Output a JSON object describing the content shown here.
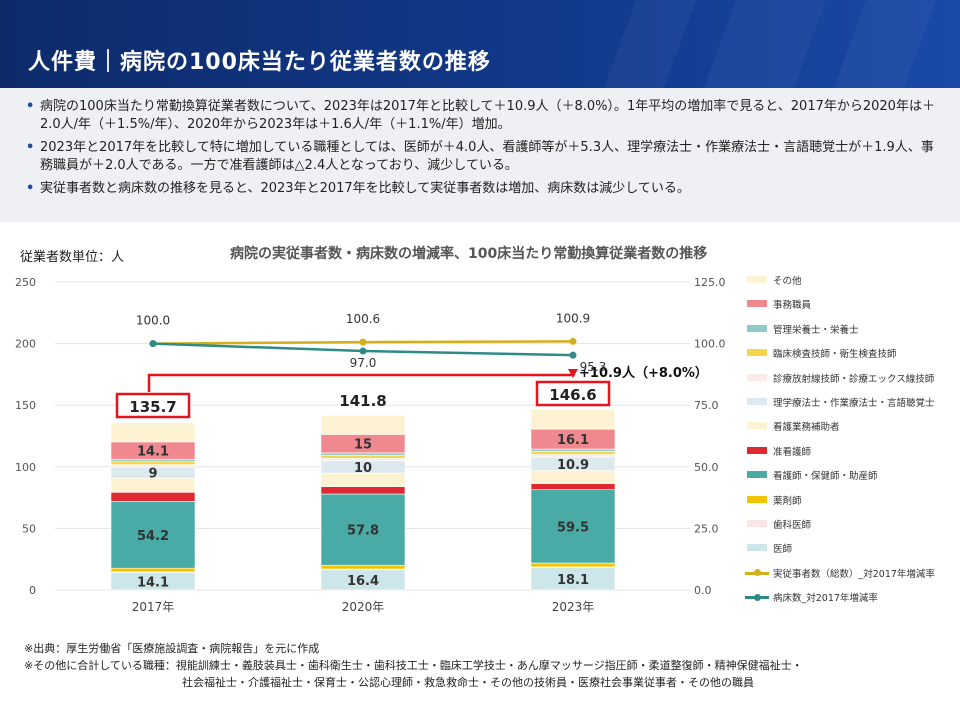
{
  "header": {
    "title": "人件費｜病院の100床当たり従業者数の推移"
  },
  "summary": {
    "bullets": [
      "病院の100床当たり常勤換算従業者数について、2023年は2017年と比較して＋10.9人（＋8.0%）。1年平均の増加率で見ると、2017年から2020年は＋2.0人/年（＋1.5%/年）、2020年から2023年は＋1.6人/年（＋1.1%/年）増加。",
      "2023年と2017年を比較して特に増加している職種としては、医師が＋4.0人、看護師等が＋5.3人、理学療法士・作業療法士・言語聴覚士が＋1.9人、事務職員が＋2.0人である。一方で准看護師は△2.4人となっており、減少している。",
      "実従事者数と病床数の推移を見ると、2023年と2017年を比較して実従事者数は増加、病床数は減少している。"
    ]
  },
  "unit_label": "従業者数単位：人",
  "notes": {
    "source": "※出典：厚生労働省「医療施設調査・病院報告」を元に作成",
    "other_line1": "※その他に合計している職種：視能訓練士・義肢装具士・歯科衛生士・歯科技工士・臨床工学技士・あん摩マッサージ指圧師・柔道整復師・精神保健福祉士・",
    "other_line2": "社会福祉士・介護福祉士・保育士・公認心理師・救急救命士・その他の技術員・医療社会事業従事者・その他の職員"
  },
  "colors": {
    "header_bg": "#123a8c",
    "highlight": "#e8141c"
  },
  "chart_data": {
    "type": "bar",
    "title": "病院の実従事者数・病床数の増減率、100床当たり常勤換算従業者数の推移",
    "categories": [
      "2017年",
      "2020年",
      "2023年"
    ],
    "ylim": [
      0,
      250
    ],
    "y2lim": [
      0,
      125
    ],
    "yticks": [
      "0",
      "50",
      "100",
      "150",
      "200",
      "250"
    ],
    "y2ticks": [
      "0.0",
      "25.0",
      "50.0",
      "75.0",
      "100.0",
      "125.0"
    ],
    "totals": [
      "135.7",
      "141.8",
      "146.6"
    ],
    "highlighted_totals": [
      true,
      false,
      true
    ],
    "change_annotation": "+10.9人（+8.0%）",
    "stack_series": [
      {
        "name": "医師",
        "color": "#cde6ea",
        "values": [
          14.1,
          16.4,
          18.1
        ],
        "label": true
      },
      {
        "name": "歯科医師",
        "color": "#fbe4e6",
        "values": [
          0.6,
          0.6,
          0.6
        ],
        "label": false
      },
      {
        "name": "薬剤師",
        "color": "#f2c500",
        "values": [
          3.0,
          3.1,
          3.2
        ],
        "label": false
      },
      {
        "name": "看護師・保健師・助産師",
        "color": "#4aaaa6",
        "values": [
          54.2,
          57.8,
          59.5
        ],
        "label": true
      },
      {
        "name": "准看護師",
        "color": "#e02a33",
        "values": [
          7.4,
          6.0,
          5.0
        ],
        "label": false
      },
      {
        "name": "看護業務補助者",
        "color": "#fdf3d2",
        "values": [
          11.5,
          11.0,
          10.6
        ],
        "label": false
      },
      {
        "name": "理学療法士・作業療法士・言語聴覚士",
        "color": "#dce9ef",
        "values": [
          9,
          10,
          10.9
        ],
        "label": true
      },
      {
        "name": "診療放射線技師・診療エックス線技師",
        "color": "#fbeaea",
        "values": [
          2.0,
          2.0,
          2.1
        ],
        "label": false
      },
      {
        "name": "臨床検査技師・衛生検査技師",
        "color": "#f5d64a",
        "values": [
          2.4,
          2.5,
          2.5
        ],
        "label": false
      },
      {
        "name": "管理栄養士・栄養士",
        "color": "#8fc9c9",
        "values": [
          1.9,
          1.9,
          1.9
        ],
        "label": false
      },
      {
        "name": "事務職員",
        "color": "#f08890",
        "values": [
          14.1,
          15,
          16.1
        ],
        "label": true
      },
      {
        "name": "その他",
        "color": "#fdf3d2",
        "values": [
          15.5,
          15.5,
          16.1
        ],
        "label": false
      }
    ],
    "line_series": [
      {
        "name": "実従事者数（総数）_対2017年増減率",
        "color": "#d4af1c",
        "values": [
          100.0,
          100.6,
          100.9
        ]
      },
      {
        "name": "病床数_対2017年増減率",
        "color": "#2e8b85",
        "values": [
          100.0,
          97.0,
          95.3
        ]
      }
    ]
  }
}
